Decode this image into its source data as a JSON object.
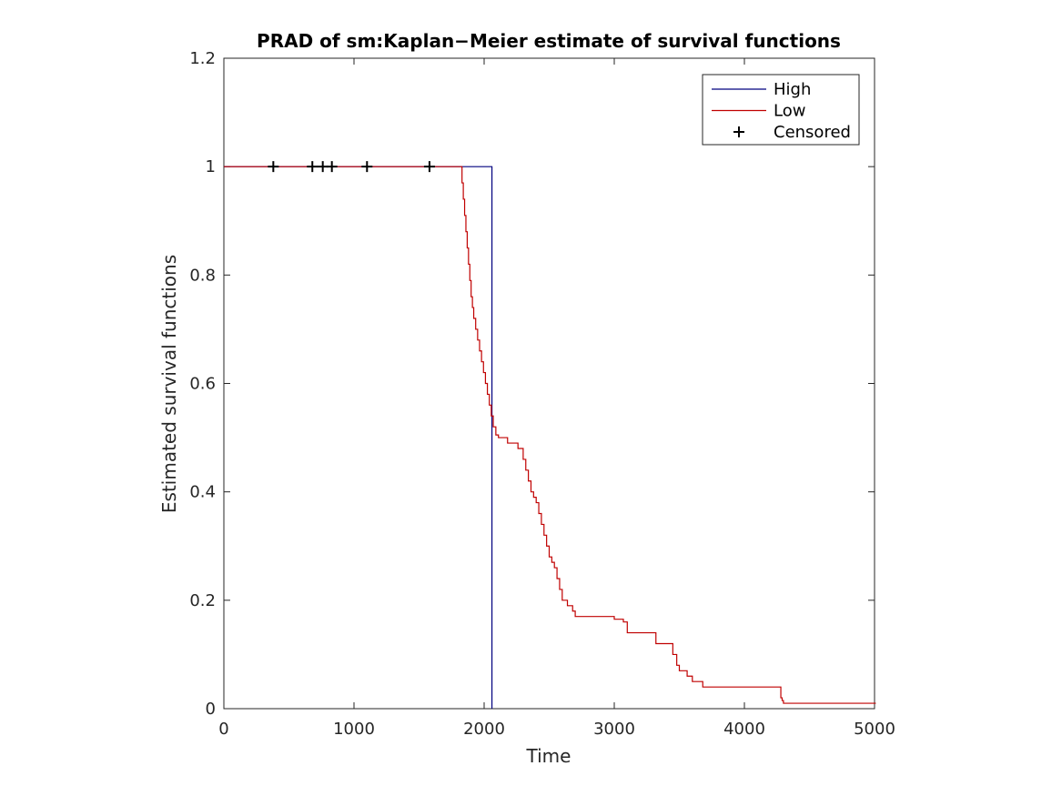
{
  "chart_data": {
    "type": "line",
    "title": "PRAD of sm:Kaplan−Meier estimate of survival functions",
    "xlabel": "Time",
    "ylabel": "Estimated survival functions",
    "xlim": [
      0,
      5000
    ],
    "ylim": [
      0,
      1.2
    ],
    "xticks": [
      0,
      1000,
      2000,
      3000,
      4000,
      5000
    ],
    "xtick_labels": [
      "0",
      "1000",
      "2000",
      "3000",
      "4000",
      "5000"
    ],
    "yticks": [
      0,
      0.2,
      0.4,
      0.6,
      0.8,
      1,
      1.2
    ],
    "ytick_labels": [
      "0",
      "0.2",
      "0.4",
      "0.6",
      "0.8",
      "1",
      "1.2"
    ],
    "grid": false,
    "legend_position": "top-right",
    "step": true,
    "series": [
      {
        "name": "High",
        "color": "#00007f",
        "x": [
          0,
          2060,
          2060
        ],
        "y": [
          1,
          1,
          0
        ]
      },
      {
        "name": "Low",
        "color": "#c00000",
        "x": [
          0,
          1830,
          1840,
          1850,
          1860,
          1870,
          1880,
          1890,
          1900,
          1910,
          1920,
          1935,
          1950,
          1965,
          1980,
          1995,
          2010,
          2025,
          2040,
          2055,
          2070,
          2090,
          2110,
          2130,
          2150,
          2180,
          2200,
          2260,
          2300,
          2320,
          2340,
          2360,
          2380,
          2400,
          2420,
          2440,
          2460,
          2480,
          2500,
          2520,
          2540,
          2560,
          2580,
          2600,
          2640,
          2660,
          2680,
          2700,
          2760,
          2800,
          2850,
          3000,
          3070,
          3100,
          3300,
          3320,
          3380,
          3450,
          3480,
          3500,
          3560,
          3600,
          3680,
          3700,
          3950,
          4280,
          4290,
          4300,
          4980,
          5010
        ],
        "y": [
          1,
          0.97,
          0.94,
          0.91,
          0.88,
          0.85,
          0.82,
          0.79,
          0.76,
          0.74,
          0.72,
          0.7,
          0.68,
          0.66,
          0.64,
          0.62,
          0.6,
          0.58,
          0.56,
          0.54,
          0.52,
          0.505,
          0.5,
          0.5,
          0.5,
          0.49,
          0.49,
          0.48,
          0.46,
          0.44,
          0.42,
          0.4,
          0.39,
          0.38,
          0.36,
          0.34,
          0.32,
          0.3,
          0.28,
          0.27,
          0.26,
          0.24,
          0.22,
          0.2,
          0.19,
          0.19,
          0.18,
          0.17,
          0.17,
          0.17,
          0.17,
          0.165,
          0.16,
          0.14,
          0.14,
          0.12,
          0.12,
          0.1,
          0.08,
          0.07,
          0.06,
          0.05,
          0.04,
          0.04,
          0.04,
          0.02,
          0.015,
          0.01,
          0.01,
          0.01
        ]
      },
      {
        "name": "Censored",
        "color": "#000000",
        "marker": "+",
        "x": [
          380,
          680,
          760,
          830,
          1100,
          1580
        ],
        "y": [
          1,
          1,
          1,
          1,
          1,
          1
        ]
      }
    ]
  }
}
